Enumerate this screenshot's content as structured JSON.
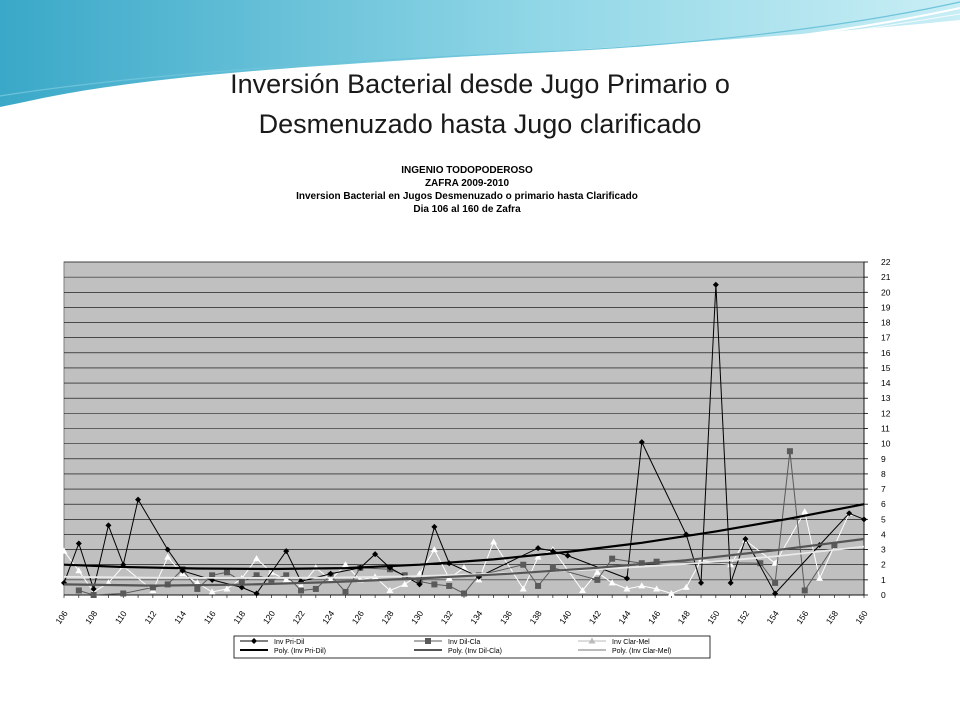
{
  "slide": {
    "title_line1": "Inversión Bacterial desde Jugo Primario  o",
    "title_line2": "Desmenuzado hasta Jugo clarificado"
  },
  "chart_data": {
    "type": "line",
    "title_lines": [
      "INGENIO TODOPODEROSO",
      "ZAFRA 2009-2010",
      "Inversion Bacterial en Jugos Desmenuzado  o primario hasta Clarificado",
      "Dia 106 al 160 de Zafra"
    ],
    "xlabel": "",
    "ylabel": "",
    "x_ticks": [
      106,
      108,
      110,
      112,
      114,
      116,
      118,
      120,
      122,
      124,
      126,
      128,
      130,
      132,
      134,
      136,
      138,
      140,
      142,
      144,
      146,
      148,
      150,
      152,
      154,
      156,
      158,
      160
    ],
    "ylim": [
      0,
      22
    ],
    "y_ticks": [
      0,
      1,
      2,
      3,
      4,
      5,
      6,
      7,
      8,
      9,
      10,
      11,
      12,
      13,
      14,
      15,
      16,
      17,
      18,
      19,
      20,
      21,
      22
    ],
    "grid": true,
    "legend_position": "bottom",
    "colors": {
      "plot_bg": "#c0c0c0",
      "pri_dil": "#000000",
      "dil_cla": "#5a5a5a",
      "clar_mel": "#ffffff",
      "poly_pri_dil": "#000000",
      "poly_dil_cla": "#555555",
      "poly_clar_mel": "#e8e8e8"
    },
    "series": [
      {
        "name": "Inv Pri-Dil",
        "marker": "diamond",
        "points": [
          [
            106,
            0.8
          ],
          [
            107,
            3.4
          ],
          [
            108,
            0.4
          ],
          [
            109,
            4.6
          ],
          [
            110,
            2.0
          ],
          [
            111,
            6.3
          ],
          [
            113,
            3.0
          ],
          [
            114,
            1.6
          ],
          [
            116,
            1.0
          ],
          [
            118,
            0.5
          ],
          [
            119,
            0.1
          ],
          [
            121,
            2.9
          ],
          [
            122,
            0.9
          ],
          [
            124,
            1.4
          ],
          [
            126,
            1.8
          ],
          [
            127,
            2.7
          ],
          [
            128,
            1.8
          ],
          [
            130,
            0.7
          ],
          [
            131,
            4.5
          ],
          [
            132,
            2.1
          ],
          [
            134,
            1.2
          ],
          [
            138,
            3.1
          ],
          [
            139,
            2.9
          ],
          [
            140,
            2.6
          ],
          [
            144,
            1.1
          ],
          [
            145,
            10.1
          ],
          [
            148,
            4.0
          ],
          [
            149,
            0.8
          ],
          [
            150,
            20.5
          ],
          [
            151,
            0.8
          ],
          [
            152,
            3.7
          ],
          [
            154,
            0.1
          ],
          [
            157,
            3.3
          ],
          [
            159,
            5.4
          ],
          [
            160,
            5.0
          ]
        ]
      },
      {
        "name": "Inv Dil-Cla",
        "marker": "square",
        "points": [
          [
            107,
            0.3
          ],
          [
            108,
            0.0
          ],
          [
            110,
            0.1
          ],
          [
            112,
            0.5
          ],
          [
            113,
            0.7
          ],
          [
            114,
            1.7
          ],
          [
            115,
            0.4
          ],
          [
            116,
            1.3
          ],
          [
            117,
            1.5
          ],
          [
            118,
            0.9
          ],
          [
            119,
            1.3
          ],
          [
            120,
            1.0
          ],
          [
            121,
            1.3
          ],
          [
            122,
            0.3
          ],
          [
            123,
            0.4
          ],
          [
            124,
            1.3
          ],
          [
            125,
            0.2
          ],
          [
            126,
            1.8
          ],
          [
            128,
            1.7
          ],
          [
            129,
            1.3
          ],
          [
            130,
            0.9
          ],
          [
            131,
            0.7
          ],
          [
            132,
            0.6
          ],
          [
            133,
            0.1
          ],
          [
            134,
            1.3
          ],
          [
            137,
            2.0
          ],
          [
            138,
            0.6
          ],
          [
            139,
            1.8
          ],
          [
            142,
            1.0
          ],
          [
            143,
            2.4
          ],
          [
            145,
            2.1
          ],
          [
            146,
            2.2
          ],
          [
            153,
            2.1
          ],
          [
            154,
            0.8
          ],
          [
            155,
            9.5
          ],
          [
            156,
            0.3
          ],
          [
            158,
            3.3
          ]
        ]
      },
      {
        "name": "Inv Clar-Mel",
        "marker": "triangle",
        "points": [
          [
            106,
            2.9
          ],
          [
            107,
            1.6
          ],
          [
            108,
            0.2
          ],
          [
            109,
            0.8
          ],
          [
            110,
            1.9
          ],
          [
            112,
            0.3
          ],
          [
            113,
            2.5
          ],
          [
            114,
            1.4
          ],
          [
            115,
            0.8
          ],
          [
            116,
            0.2
          ],
          [
            117,
            0.4
          ],
          [
            118,
            1.1
          ],
          [
            119,
            2.4
          ],
          [
            120,
            1.5
          ],
          [
            121,
            1.0
          ],
          [
            122,
            0.6
          ],
          [
            123,
            1.8
          ],
          [
            124,
            1.0
          ],
          [
            125,
            2.0
          ],
          [
            126,
            1.0
          ],
          [
            127,
            1.2
          ],
          [
            128,
            0.3
          ],
          [
            129,
            0.7
          ],
          [
            130,
            1.4
          ],
          [
            131,
            3.0
          ],
          [
            132,
            1.1
          ],
          [
            133,
            1.8
          ],
          [
            134,
            1.0
          ],
          [
            135,
            3.5
          ],
          [
            137,
            0.4
          ],
          [
            138,
            2.5
          ],
          [
            139,
            3.0
          ],
          [
            141,
            0.3
          ],
          [
            142,
            1.5
          ],
          [
            143,
            0.8
          ],
          [
            144,
            0.4
          ],
          [
            145,
            0.6
          ],
          [
            146,
            0.4
          ],
          [
            147,
            0.1
          ],
          [
            148,
            0.5
          ],
          [
            149,
            2.3
          ],
          [
            151,
            2.0
          ],
          [
            152,
            3.6
          ],
          [
            154,
            2.1
          ],
          [
            156,
            5.5
          ],
          [
            157,
            1.1
          ],
          [
            159,
            5.4
          ]
        ]
      },
      {
        "name": "Poly. (Inv Pri-Dil)",
        "style": "trend",
        "points": [
          [
            106,
            2.0
          ],
          [
            110,
            1.85
          ],
          [
            115,
            1.75
          ],
          [
            120,
            1.72
          ],
          [
            125,
            1.78
          ],
          [
            130,
            2.0
          ],
          [
            135,
            2.35
          ],
          [
            140,
            2.85
          ],
          [
            145,
            3.45
          ],
          [
            150,
            4.2
          ],
          [
            155,
            5.05
          ],
          [
            160,
            6.0
          ]
        ]
      },
      {
        "name": "Poly. (Inv Dil-Cla)",
        "style": "trend",
        "points": [
          [
            106,
            0.7
          ],
          [
            112,
            0.62
          ],
          [
            118,
            0.68
          ],
          [
            124,
            0.85
          ],
          [
            130,
            1.1
          ],
          [
            136,
            1.4
          ],
          [
            142,
            1.8
          ],
          [
            148,
            2.3
          ],
          [
            154,
            2.95
          ],
          [
            160,
            3.7
          ]
        ]
      },
      {
        "name": "Poly. (Inv Clar-Mel)",
        "style": "trend",
        "points": [
          [
            106,
            1.2
          ],
          [
            112,
            1.15
          ],
          [
            118,
            1.12
          ],
          [
            124,
            1.15
          ],
          [
            130,
            1.25
          ],
          [
            136,
            1.45
          ],
          [
            142,
            1.7
          ],
          [
            148,
            2.05
          ],
          [
            154,
            2.55
          ],
          [
            160,
            3.2
          ]
        ]
      }
    ]
  }
}
